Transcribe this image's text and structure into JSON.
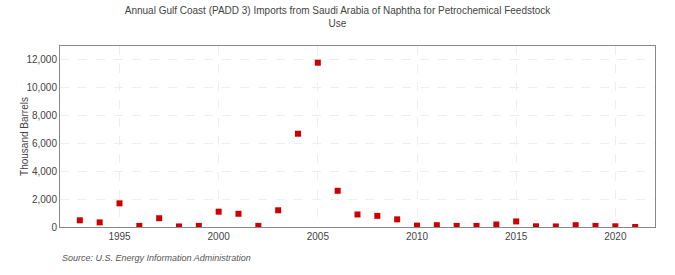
{
  "chart_data": {
    "type": "scatter",
    "title": "Annual Gulf Coast (PADD 3) Imports from Saudi Arabia of Naphtha for Petrochemical Feedstock\nUse",
    "ylabel": "Thousand Barrels",
    "annotations": [
      "Source: U.S. Energy Information Administration"
    ],
    "x": [
      1993,
      1994,
      1995,
      1996,
      1997,
      1998,
      1999,
      2000,
      2001,
      2002,
      2003,
      2004,
      2005,
      2006,
      2007,
      2008,
      2009,
      2010,
      2011,
      2012,
      2013,
      2014,
      2015,
      2016,
      2017,
      2018,
      2019,
      2020,
      2021
    ],
    "values": [
      480,
      330,
      1700,
      80,
      630,
      40,
      80,
      1100,
      950,
      80,
      1200,
      6700,
      11800,
      2600,
      900,
      800,
      550,
      100,
      130,
      80,
      80,
      180,
      400,
      50,
      40,
      130,
      80,
      50,
      0
    ],
    "color": "#cc0000",
    "marker": "square",
    "xlim": [
      1992,
      2022
    ],
    "ylim": [
      0,
      13000
    ],
    "xticks": [
      1995,
      2000,
      2005,
      2010,
      2015,
      2020
    ],
    "yticks": [
      0,
      {
        "value": 2000,
        "label": "2,000"
      },
      {
        "value": 4000,
        "label": "4,000"
      },
      {
        "value": 6000,
        "label": "6,000"
      },
      {
        "value": 8000,
        "label": "8,000"
      },
      {
        "value": 10000,
        "label": "10,000"
      },
      {
        "value": 12000,
        "label": "12,000"
      }
    ],
    "grid": true
  }
}
